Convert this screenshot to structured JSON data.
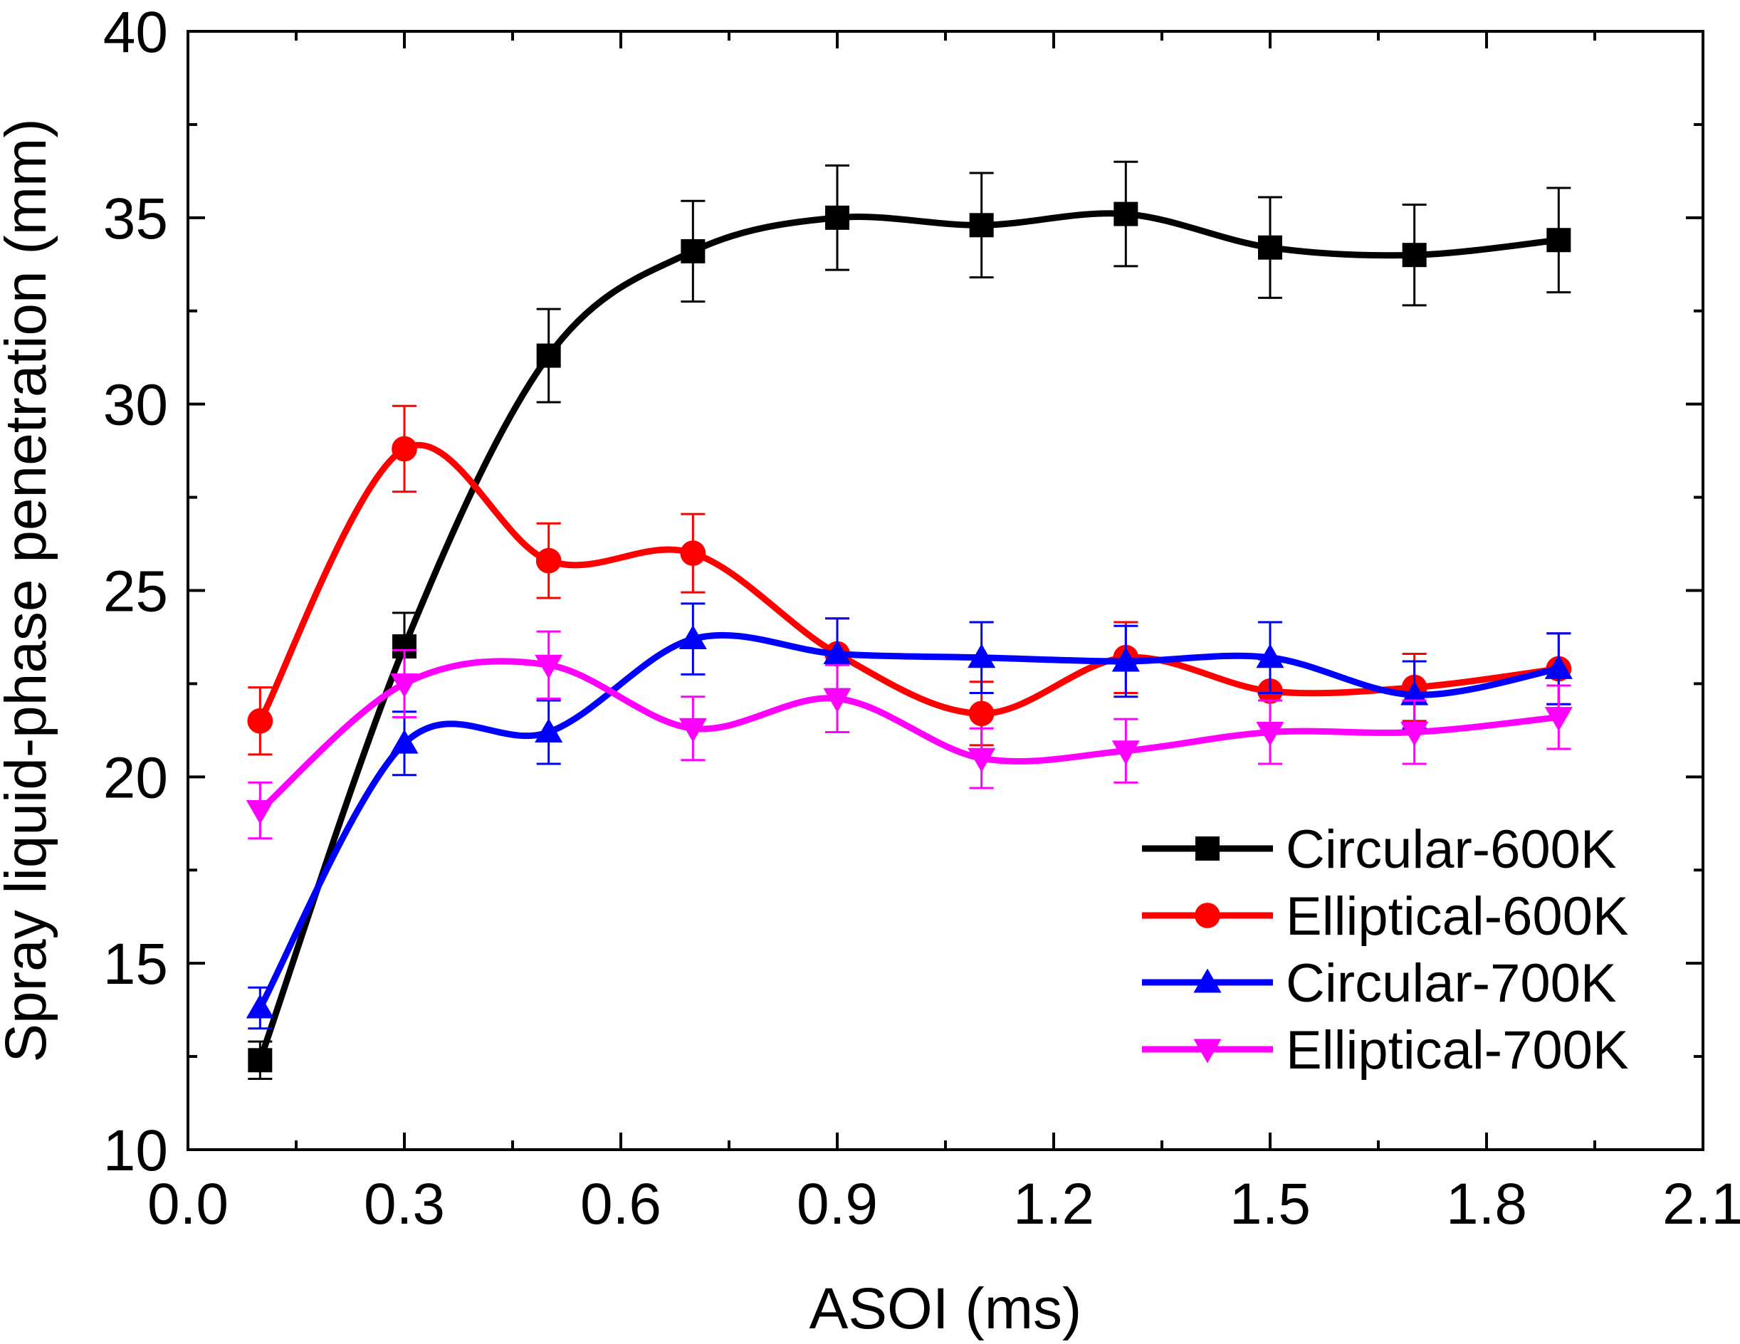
{
  "chart_data": {
    "type": "line",
    "title": "",
    "xlabel": "ASOI (ms)",
    "ylabel": "Spray liquid-phase penetration (mm)",
    "xlim": [
      0.0,
      2.1
    ],
    "ylim": [
      10,
      40
    ],
    "x_ticks": [
      "0.0",
      "0.3",
      "0.6",
      "0.9",
      "1.2",
      "1.5",
      "1.8",
      "2.1"
    ],
    "x_tick_values": [
      0.0,
      0.3,
      0.6,
      0.9,
      1.2,
      1.5,
      1.8,
      2.1
    ],
    "y_ticks": [
      "10",
      "15",
      "20",
      "25",
      "30",
      "35",
      "40"
    ],
    "y_tick_values": [
      10,
      15,
      20,
      25,
      30,
      35,
      40
    ],
    "grid": false,
    "legend_position": "bottom-right",
    "x": [
      0.1,
      0.3,
      0.5,
      0.7,
      0.9,
      1.1,
      1.3,
      1.5,
      1.7,
      1.9
    ],
    "series": [
      {
        "name": "Circular-600K",
        "color": "#000000",
        "marker": "square",
        "values": [
          12.4,
          23.5,
          31.3,
          34.1,
          35.0,
          34.8,
          35.1,
          34.2,
          34.0,
          34.4
        ],
        "errors": [
          0.5,
          0.9,
          1.25,
          1.35,
          1.4,
          1.4,
          1.4,
          1.35,
          1.35,
          1.4
        ]
      },
      {
        "name": "Elliptical-600K",
        "color": "#ff0000",
        "marker": "circle",
        "values": [
          21.5,
          28.8,
          25.8,
          26.0,
          23.3,
          21.7,
          23.2,
          22.3,
          22.4,
          22.9
        ],
        "errors": [
          0.9,
          1.15,
          1.0,
          1.05,
          0.95,
          0.85,
          0.95,
          0.85,
          0.9,
          0.95
        ]
      },
      {
        "name": "Circular-700K",
        "color": "#0000ff",
        "marker": "triangle-up",
        "values": [
          13.8,
          20.9,
          21.2,
          23.7,
          23.3,
          23.2,
          23.1,
          23.2,
          22.2,
          22.9
        ],
        "errors": [
          0.55,
          0.85,
          0.85,
          0.95,
          0.95,
          0.95,
          0.95,
          0.95,
          0.9,
          0.95
        ]
      },
      {
        "name": "Elliptical-700K",
        "color": "#ff00ff",
        "marker": "triangle-down",
        "values": [
          19.1,
          22.5,
          23.0,
          21.3,
          22.1,
          20.5,
          20.7,
          21.2,
          21.2,
          21.6
        ],
        "errors": [
          0.75,
          0.9,
          0.9,
          0.85,
          0.9,
          0.8,
          0.85,
          0.85,
          0.85,
          0.85
        ]
      }
    ]
  }
}
